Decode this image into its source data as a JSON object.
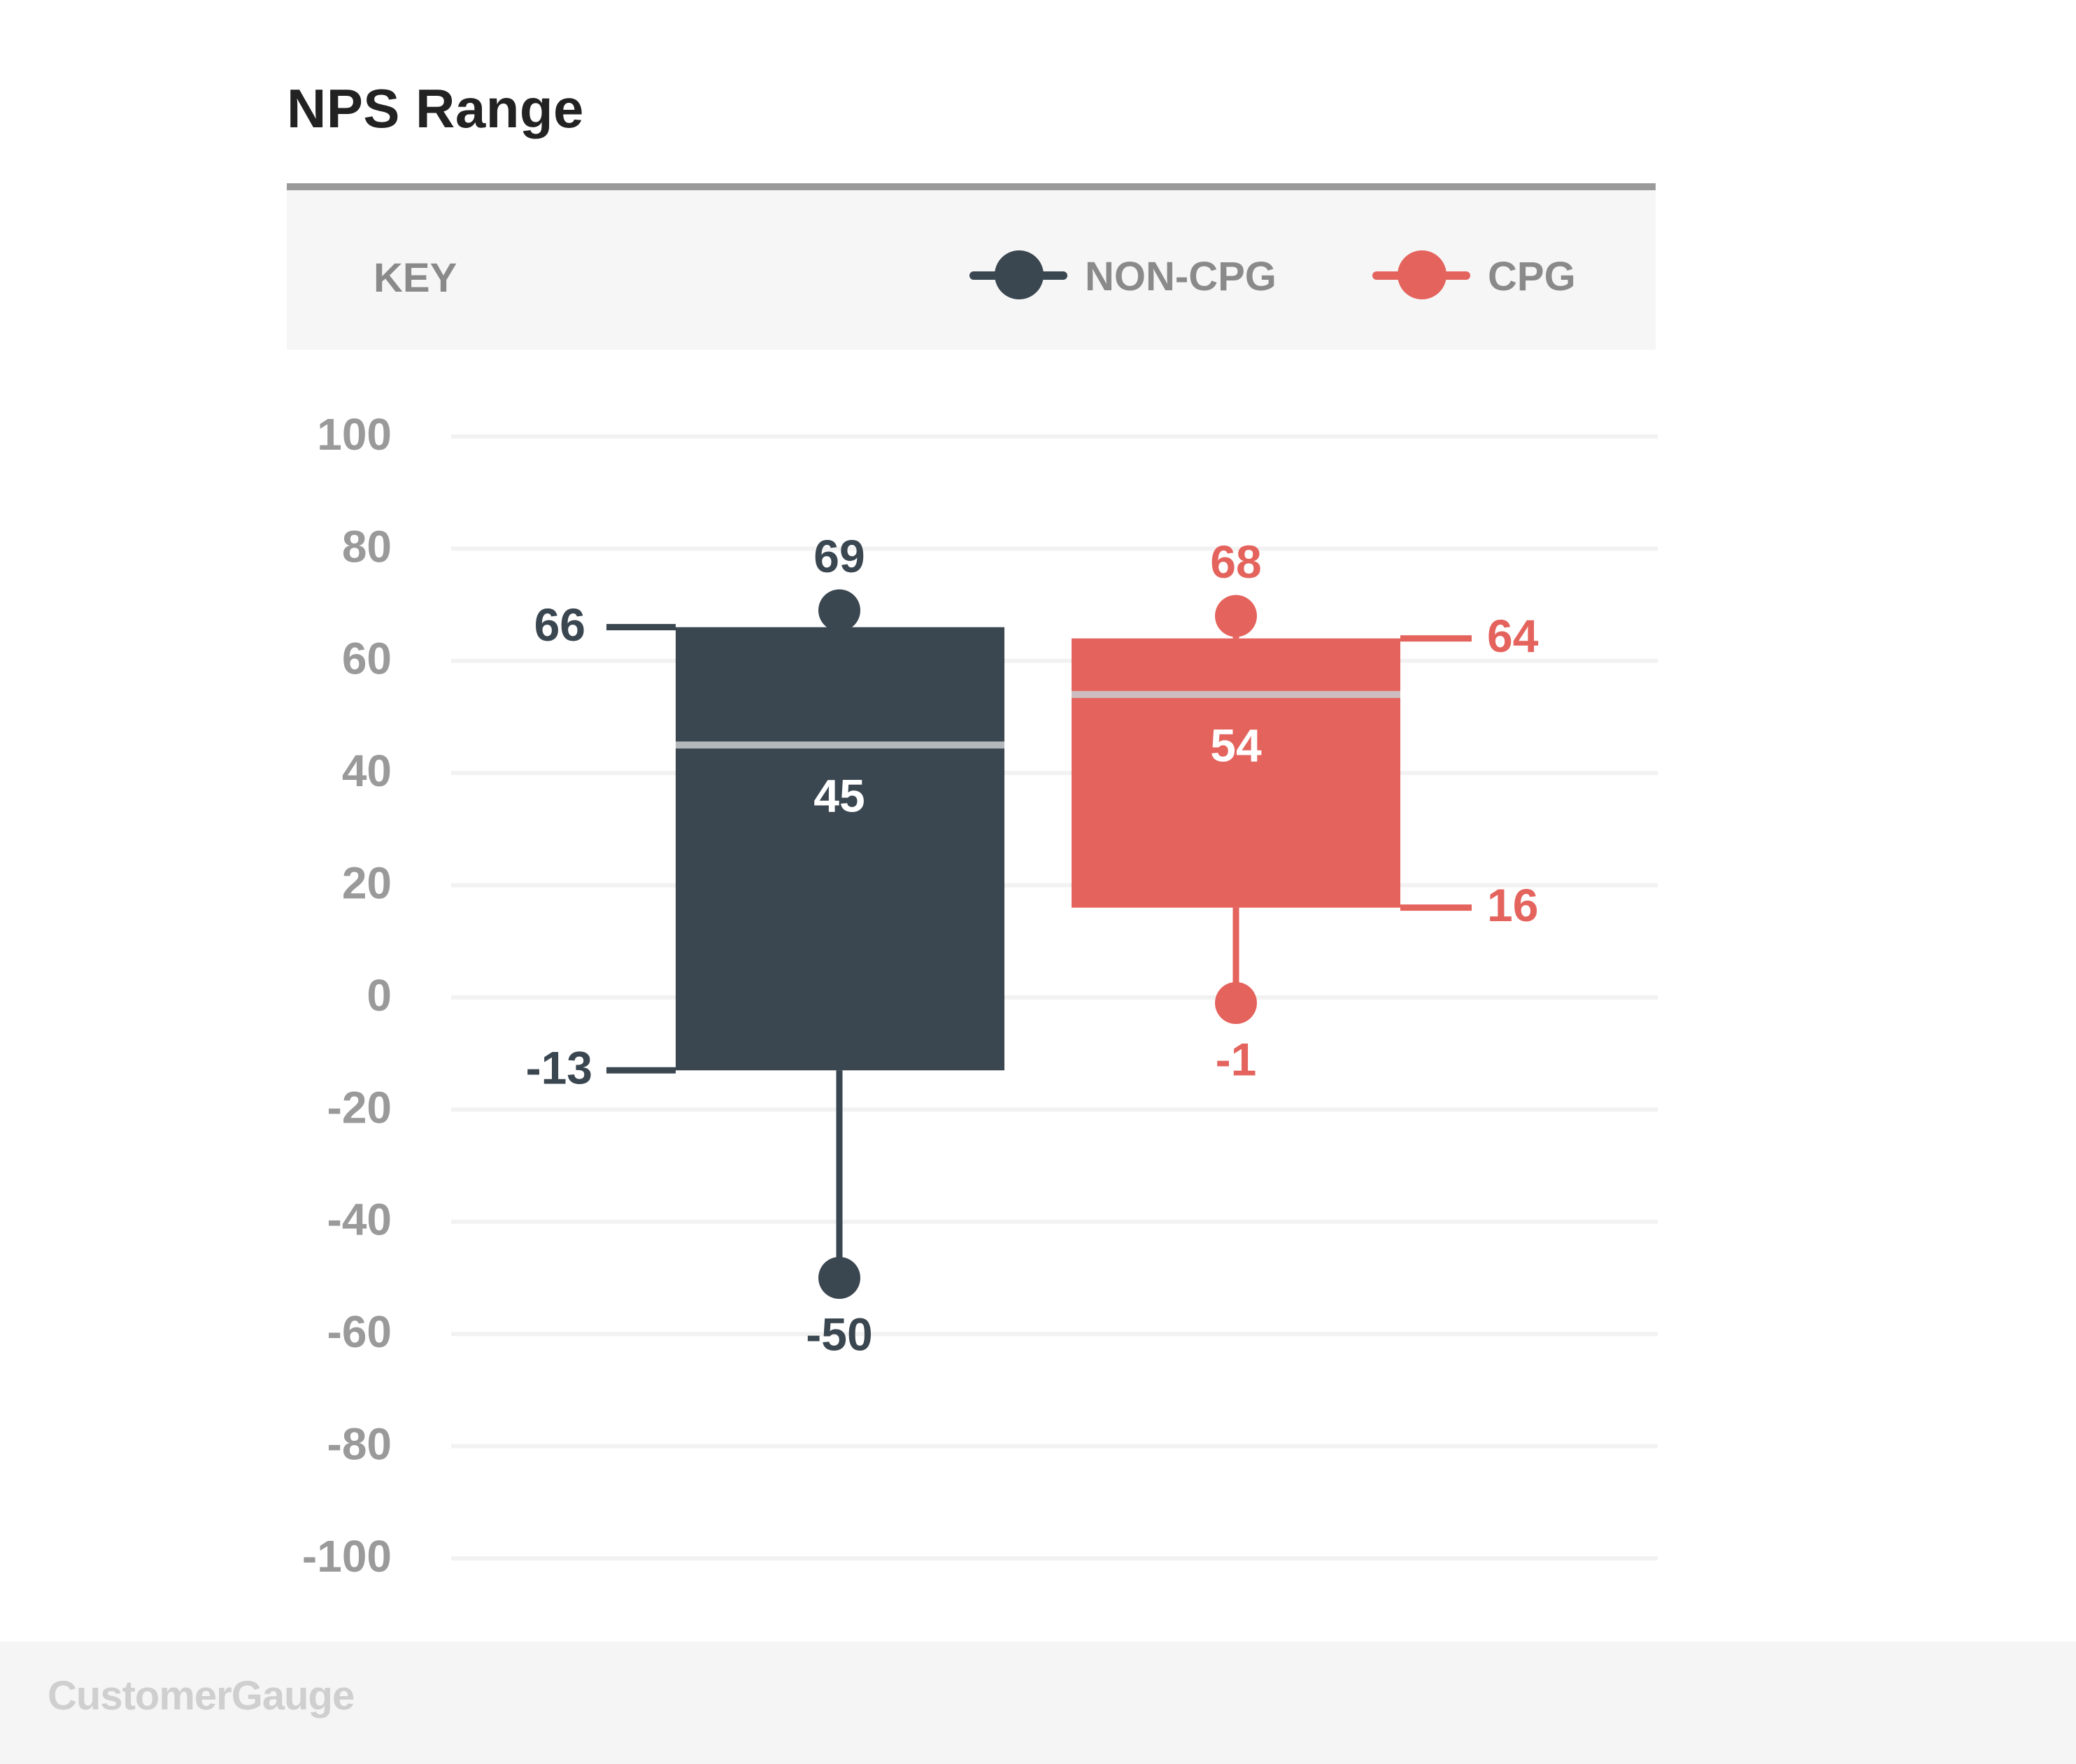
{
  "chart_data": {
    "type": "box",
    "title": "NPS Range",
    "key_label": "KEY",
    "xlabel": "",
    "ylabel": "",
    "ylim": [
      -100,
      100
    ],
    "yticks": [
      100,
      80,
      60,
      40,
      20,
      0,
      -20,
      -40,
      -60,
      -80,
      -100
    ],
    "grid": true,
    "legend_position": "top-right",
    "series": [
      {
        "name": "NON-CPG",
        "color": "#3a4650",
        "min": -50,
        "q1": -13,
        "median": 45,
        "q3": 66,
        "max": 69
      },
      {
        "name": "CPG",
        "color": "#e4635d",
        "min": -1,
        "q1": 16,
        "median": 54,
        "q3": 64,
        "max": 68
      }
    ]
  },
  "footer": {
    "brand": "CustomerGauge"
  }
}
